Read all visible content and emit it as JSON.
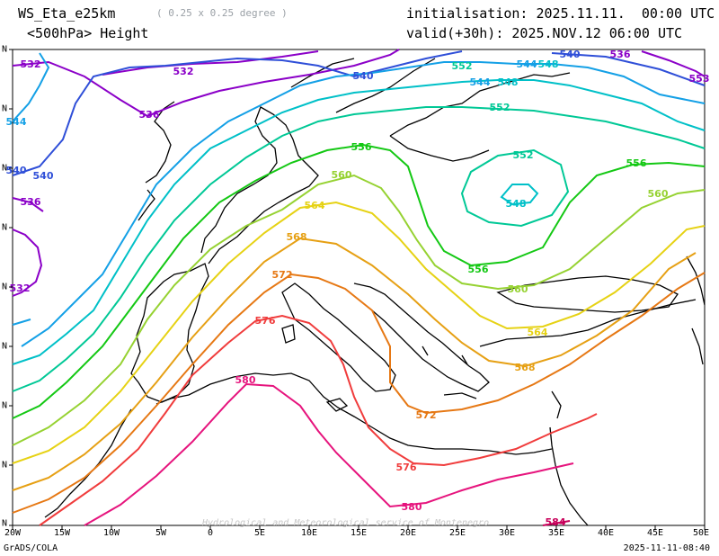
{
  "header": {
    "model": "WS_Eta_e25km",
    "resolution": "( 0.25 x 0.25 degree )",
    "variable": "<500hPa> Height",
    "initialisation": "initialisation: 2025.11.11.  00:00 UTC",
    "valid": "valid(+30h): 2025.NOV.12 06:00 UTC"
  },
  "axes": {
    "x_ticks": [
      "20W",
      "15W",
      "10W",
      "5W",
      "0",
      "5E",
      "10E",
      "15E",
      "20E",
      "25E",
      "30E",
      "35E",
      "40E",
      "45E",
      "50E"
    ],
    "y_ticks": [
      "N",
      "N",
      "N",
      "N",
      "N",
      "N",
      "N",
      "N",
      "N"
    ]
  },
  "contour_labels": [
    {
      "text": "532",
      "color": "#8b00c8"
    },
    {
      "text": "536",
      "color": "#8b00c8"
    },
    {
      "text": "540",
      "color": "#2f4fd8"
    },
    {
      "text": "544",
      "color": "#14a0e6"
    },
    {
      "text": "548",
      "color": "#00c0c8"
    },
    {
      "text": "552",
      "color": "#00c896"
    },
    {
      "text": "556",
      "color": "#14c814"
    },
    {
      "text": "560",
      "color": "#96d232"
    },
    {
      "text": "564",
      "color": "#e6d214"
    },
    {
      "text": "568",
      "color": "#e6a014"
    },
    {
      "text": "572",
      "color": "#e67814"
    },
    {
      "text": "576",
      "color": "#f03c3c"
    },
    {
      "text": "580",
      "color": "#e6147d"
    },
    {
      "text": "548",
      "color": "#00c0c8"
    },
    {
      "text": "552",
      "color": "#00c896"
    },
    {
      "text": "556",
      "color": "#14c814"
    },
    {
      "text": "560",
      "color": "#96d232"
    },
    {
      "text": "564",
      "color": "#e6d214"
    },
    {
      "text": "568",
      "color": "#e6a014"
    },
    {
      "text": "572",
      "color": "#e67814"
    },
    {
      "text": "576",
      "color": "#f03c3c"
    },
    {
      "text": "580",
      "color": "#e6147d"
    },
    {
      "text": "536",
      "color": "#8b00c8"
    },
    {
      "text": "532",
      "color": "#8b00c8"
    },
    {
      "text": "540",
      "color": "#2f4fd8"
    },
    {
      "text": "544",
      "color": "#14a0e6"
    },
    {
      "text": "553",
      "color": "#8b00c8"
    },
    {
      "text": "556",
      "color": "#14c814"
    },
    {
      "text": "560",
      "color": "#96d232"
    },
    {
      "text": "548",
      "color": "#00c0c8"
    },
    {
      "text": "552",
      "color": "#00c896"
    },
    {
      "text": "540",
      "color": "#2f4fd8"
    },
    {
      "text": "536",
      "color": "#8b00c8"
    },
    {
      "text": "544",
      "color": "#14a0e6"
    },
    {
      "text": "532",
      "color": "#8b00c8"
    },
    {
      "text": "540",
      "color": "#2f4fd8"
    },
    {
      "text": "584",
      "color": "#c8005a"
    }
  ],
  "credit": "Hydrological and Meteorological service of Montenegro",
  "footer": {
    "left": "GrADS/COLA",
    "right": "2025-11-11-08:40"
  }
}
